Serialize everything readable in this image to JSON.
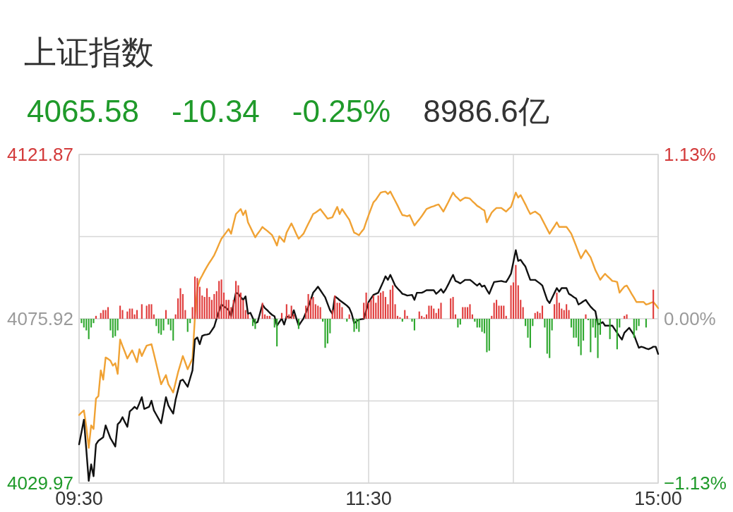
{
  "chart_data": {
    "type": "line",
    "title": "上证指数",
    "annotations": [
      "4065.58",
      "-10.34",
      "-0.25%",
      "8986.6亿"
    ],
    "categories": [
      "09:30",
      null,
      null,
      null,
      null,
      null,
      null,
      null,
      null,
      null,
      null,
      null,
      null,
      null,
      null,
      null,
      null,
      null,
      null,
      null,
      null,
      null,
      null,
      null,
      null,
      null,
      null,
      null,
      null,
      null,
      null,
      null,
      null,
      null,
      null,
      null,
      null,
      null,
      null,
      null,
      null,
      null,
      null,
      null,
      null,
      null,
      null,
      null,
      null,
      null,
      null,
      null,
      null,
      null,
      null,
      null,
      null,
      null,
      null,
      null,
      null,
      null,
      null,
      null,
      null,
      null,
      null,
      null,
      null,
      null,
      null,
      null,
      null,
      null,
      null,
      null,
      null,
      null,
      null,
      null,
      null,
      null,
      null,
      null,
      null,
      null,
      null,
      null,
      null,
      null,
      null,
      null,
      null,
      null,
      null,
      null,
      null,
      null,
      null,
      null,
      null,
      null,
      null,
      null,
      null,
      null,
      null,
      null,
      null,
      null,
      null,
      null,
      null,
      null,
      null,
      null,
      null,
      null,
      null,
      null,
      "11:30",
      null,
      null,
      null,
      null,
      null,
      null,
      null,
      null,
      null,
      null,
      null,
      null,
      null,
      null,
      null,
      null,
      null,
      null,
      null,
      null,
      null,
      null,
      null,
      null,
      null,
      null,
      null,
      null,
      null,
      null,
      null,
      null,
      null,
      null,
      null,
      null,
      null,
      null,
      null,
      null,
      null,
      null,
      null,
      null,
      null,
      null,
      null,
      null,
      null,
      null,
      null,
      null,
      null,
      null,
      null,
      null,
      null,
      null,
      null,
      null,
      null,
      null,
      null,
      null,
      null,
      null,
      null,
      null,
      null,
      null,
      null,
      null,
      null,
      null,
      null,
      null,
      null,
      null,
      null,
      null,
      null,
      null,
      null,
      null,
      null,
      null,
      null,
      null,
      null,
      null,
      null,
      null,
      null,
      null,
      null,
      null,
      null,
      null,
      null,
      null,
      null,
      null,
      null,
      null,
      null,
      null,
      null,
      null,
      null,
      null,
      null,
      null,
      null,
      null,
      null,
      null,
      null,
      null,
      null,
      "15:00"
    ],
    "ylim": [
      4029.97,
      4121.87
    ],
    "yticks": [
      4029.97,
      {
        "value": 4052.945,
        "label": null
      },
      4075.92,
      {
        "value": 4098.895,
        "label": null
      },
      4121.87
    ],
    "y2lim": [
      -1.13,
      1.13
    ],
    "y2ticks": [
      {
        "value": -1.13,
        "label": "−1.13%"
      },
      {
        "value": 0,
        "label": "0.00%"
      },
      {
        "value": 1.13,
        "label": "1.13%"
      }
    ],
    "grid": true,
    "series": [
      {
        "type": "bar",
        "axis": "y2",
        "color": "#e03c3c",
        "values": [
          null,
          null,
          null,
          null,
          null,
          null,
          null,
          0.02,
          null,
          0.04,
          0.06,
          0.06,
          0.08,
          null,
          null,
          null,
          null,
          0.09,
          0.06,
          null,
          0.05,
          0.07,
          0.07,
          0.03,
          0.06,
          null,
          0.1,
          null,
          0.09,
          0.1,
          0.1,
          0.03,
          null,
          null,
          null,
          null,
          0.06,
          null,
          null,
          null,
          0.03,
          0.14,
          0.21,
          0.17,
          0.06,
          null,
          null,
          0.08,
          0.29,
          0.28,
          0.22,
          0.16,
          0.15,
          0.21,
          0.15,
          0.13,
          0.17,
          0.19,
          0.26,
          0.27,
          0.18,
          0.13,
          0.13,
          0.08,
          0.13,
          0.26,
          0.23,
          0.18,
          0.13,
          0.06,
          0.03,
          null,
          null,
          null,
          null,
          null,
          0.11,
          0.03,
          0.02,
          0.02,
          null,
          null,
          null,
          null,
          0.04,
          null,
          0.1,
          0.03,
          0.09,
          0.03,
          null,
          null,
          null,
          null,
          0.09,
          0.17,
          0.14,
          0.15,
          0.1,
          0.09,
          0.08,
          null,
          null,
          null,
          null,
          0.06,
          0.16,
          0.11,
          0.11,
          0.08,
          null,
          null,
          0.03,
          null,
          null,
          null,
          null,
          null,
          0.11,
          0.18,
          0.11,
          0.13,
          0.16,
          0.11,
          0.16,
          0.18,
          0.19,
          0.15,
          0.1,
          0.2,
          0.23,
          0.1,
          0.02,
          0.01,
          null,
          0.06,
          0.02,
          null,
          null,
          null,
          null,
          0.05,
          0.02,
          0.01,
          0.03,
          0.09,
          0.09,
          0.07,
          0.04,
          0.07,
          0.11,
          null,
          null,
          null,
          0.14,
          0.15,
          0.03,
          null,
          null,
          0.08,
          0.08,
          0.08,
          0.1,
          0.03,
          null,
          null,
          null,
          null,
          null,
          null,
          null,
          0.02,
          0.11,
          0.13,
          0.09,
          0.09,
          0.09,
          0.02,
          null,
          0.23,
          0.25,
          0.37,
          0.23,
          0.13,
          0.08,
          null,
          null,
          null,
          null,
          0.04,
          0.05,
          0.04,
          0.09,
          null,
          null,
          null,
          null,
          0.1,
          0.18,
          0.11,
          0.07,
          0.06,
          0.1,
          0.06,
          null,
          null,
          null,
          null,
          null,
          null,
          0.03,
          null,
          null,
          null,
          null,
          null,
          null,
          null,
          null,
          null,
          null,
          null,
          null,
          null,
          null,
          null,
          0.02,
          0.03,
          null,
          null,
          null,
          null,
          null,
          null,
          null,
          null,
          null,
          null,
          0.2,
          null,
          null
        ]
      },
      {
        "type": "bar",
        "axis": "y2",
        "color": "#2ea82e",
        "values": [
          null,
          -0.03,
          -0.06,
          -0.08,
          -0.14,
          -0.06,
          -0.03,
          null,
          null,
          null,
          null,
          null,
          null,
          -0.08,
          -0.13,
          -0.12,
          -0.08,
          null,
          null,
          null,
          null,
          null,
          null,
          null,
          null,
          null,
          null,
          null,
          null,
          null,
          null,
          null,
          -0.05,
          -0.1,
          -0.11,
          -0.08,
          null,
          -0.04,
          -0.08,
          -0.15,
          null,
          null,
          null,
          null,
          null,
          -0.09,
          -0.03,
          null,
          null,
          null,
          null,
          null,
          null,
          null,
          null,
          null,
          null,
          null,
          null,
          null,
          null,
          null,
          null,
          null,
          null,
          null,
          null,
          null,
          null,
          null,
          null,
          null,
          -0.05,
          -0.07,
          null,
          null,
          null,
          null,
          null,
          null,
          null,
          -0.06,
          -0.19,
          null,
          null,
          null,
          null,
          null,
          null,
          null,
          null,
          -0.07,
          null,
          null,
          null,
          null,
          null,
          null,
          null,
          null,
          null,
          -0.02,
          -0.2,
          -0.17,
          -0.1,
          null,
          null,
          null,
          null,
          null,
          null,
          -0.02,
          null,
          null,
          -0.09,
          -0.07,
          -0.09,
          null,
          null,
          null,
          null,
          null,
          null,
          null,
          null,
          null,
          null,
          null,
          null,
          null,
          null,
          null,
          null,
          null,
          -0.02,
          null,
          null,
          null,
          -0.02,
          -0.08,
          null,
          null,
          null,
          null,
          null,
          null,
          null,
          null,
          null,
          null,
          null,
          null,
          null,
          null,
          null,
          null,
          null,
          -0.06,
          -0.04,
          null,
          null,
          null,
          null,
          null,
          -0.02,
          -0.06,
          -0.06,
          -0.09,
          -0.1,
          -0.23,
          -0.22,
          null,
          null,
          null,
          null,
          null,
          null,
          null,
          null,
          null,
          null,
          null,
          null,
          null,
          null,
          -0.05,
          -0.13,
          -0.2,
          -0.05,
          null,
          null,
          null,
          null,
          -0.06,
          -0.24,
          -0.27,
          -0.08,
          null,
          null,
          null,
          null,
          null,
          null,
          null,
          -0.06,
          -0.13,
          -0.13,
          -0.19,
          -0.25,
          -0.15,
          null,
          -0.01,
          -0.23,
          -0.06,
          -0.13,
          -0.27,
          -0.11,
          null,
          null,
          null,
          -0.14,
          null,
          null,
          -0.21,
          -0.06,
          null,
          null,
          null,
          null,
          null,
          -0.13,
          -0.08,
          -0.05,
          null,
          null,
          -0.06,
          null,
          null,
          null,
          null,
          null
        ]
      },
      {
        "color": "#f0a234",
        "values": [
          4049.0,
          4049.7,
          4050.3,
          4045.7,
          4039.8,
          4046.1,
          4045.1,
          4053.6,
          4054.3,
          4061.5,
          4058.9,
          4065.1,
          4064.7,
          4064.2,
          4062.8,
          4063.5,
          4060.5,
          4070.1,
          4068.3,
          4066.6,
          4064.8,
          4066.0,
          4067.1,
          4065.5,
          4063.8,
          4067.4,
          4065.5,
          4067.0,
          4068.4,
          4068.6,
          4068.8,
          4066.1,
          4063.3,
          4060.4,
          4057.6,
          4058.9,
          4060.2,
          4057.6,
          4056.5,
          4055.3,
          4058.1,
          4060.9,
          4063.2,
          4065.5,
          4063.7,
          4061.8,
          4063.3,
          4064.8,
          4076.3,
          4084.5,
          4086.8,
          4088.0,
          4089.3,
          4090.5,
          4091.6,
          4092.6,
          4093.7,
          4095.2,
          4096.8,
          4098.3,
          4099.2,
          4100.1,
          4101.0,
          4099.7,
          4102.5,
          4105.2,
          4105.9,
          4106.6,
          4104.9,
          4106.2,
          4102.9,
          4101.5,
          4100.1,
          4098.7,
          4099.7,
          4100.6,
          4101.6,
          4101.0,
          4100.5,
          4099.9,
          4099.3,
          4097.9,
          4096.4,
          4099.0,
          4098.2,
          4097.4,
          4100.0,
          4101.3,
          4102.6,
          4101.2,
          4099.7,
          4098.3,
          4099.0,
          4099.7,
          4101.1,
          4102.5,
          4103.8,
          4105.2,
          4105.6,
          4106.1,
          4106.6,
          4105.7,
          4104.8,
          4103.9,
          4104.1,
          4104.3,
          4105.8,
          4107.2,
          4105.2,
          4106.6,
          4105.6,
          4104.6,
          4103.6,
          4101.8,
          4100.0,
          4099.7,
          4099.3,
          4100.2,
          4101.0,
          4103.0,
          4104.9,
          4106.7,
          4108.5,
          4109.2,
          4110.2,
          4111.2,
          4111.4,
          4111.5,
          4110.8,
          4111.5,
          4110.2,
          4108.9,
          4107.6,
          4106.2,
          4104.9,
          4104.8,
          4104.6,
          4104.9,
          4103.5,
          4102.0,
          4102.9,
          4103.7,
          4104.6,
          4105.6,
          4106.6,
          4106.9,
          4107.2,
          4107.4,
          4107.7,
          4107.9,
          4106.9,
          4105.9,
          4107.2,
          4108.5,
          4109.9,
          4111.2,
          4110.2,
          4109.6,
          4108.9,
          4109.4,
          4109.8,
          4109.7,
          4109.5,
          4108.8,
          4108.2,
          4107.5,
          4107.1,
          4106.6,
          4106.2,
          4102.9,
          4104.3,
          4105.6,
          4106.3,
          4106.9,
          4106.9,
          4106.9,
          4106.4,
          4105.9,
          4106.6,
          4107.2,
          4109.2,
          4111.2,
          4109.8,
          4110.5,
          4109.2,
          4107.9,
          4106.5,
          4105.2,
          4105.6,
          4105.9,
          4105.4,
          4104.9,
          4103.6,
          4102.3,
          4101.0,
          4099.7,
          4100.8,
          4101.8,
          4102.9,
          4101.6,
          4101.6,
          4101.6,
          4101.6,
          4100.7,
          4099.7,
          4098.0,
          4096.3,
          4094.5,
          4092.8,
          4094.0,
          4095.1,
          4094.1,
          4093.1,
          4091.3,
          4089.5,
          4088.2,
          4086.8,
          4087.7,
          4088.5,
          4087.8,
          4087.2,
          4086.5,
          4086.4,
          4086.2,
          4083.2,
          4084.1,
          4084.9,
          4085.2,
          4084.1,
          4082.9,
          4081.8,
          4080.6,
          4080.6,
          4080.6,
          4080.6,
          4079.9,
          4080.1,
          4080.4,
          4080.6,
          4079.8,
          4078.9
        ]
      },
      {
        "color": "#111111",
        "values": [
          4040.8,
          4044.2,
          4047.7,
          4039.2,
          4030.6,
          4035.2,
          4031.9,
          4040.8,
          4041.8,
          4042.3,
          4042.8,
          4046.1,
          4044.3,
          4042.5,
          4041.4,
          4040.2,
          4046.4,
          4047.1,
          4048.4,
          4047.0,
          4045.7,
          4050.0,
          4050.6,
          4051.3,
          4050.7,
          4052.3,
          4054.0,
          4050.7,
          4051.0,
          4051.3,
          4053.0,
          4050.3,
          4049.1,
          4047.9,
          4046.7,
          4050.3,
          4054.0,
          4051.7,
          4050.5,
          4049.4,
          4053.3,
          4056.0,
          4058.6,
          4058.9,
          4057.9,
          4056.9,
          4059.2,
          4061.5,
          4070.1,
          4070.7,
          4068.8,
          4071.1,
          4071.4,
          4071.5,
          4071.7,
          4072.7,
          4073.7,
          4076.0,
          4078.0,
          4079.9,
          4079.4,
          4078.9,
          4078.3,
          4076.6,
          4079.9,
          4083.2,
          4082.9,
          4082.0,
          4081.2,
          4082.2,
          4077.3,
          4077.6,
          4076.1,
          4074.7,
          4075.0,
          4077.5,
          4079.9,
          4078.9,
          4078.3,
          4077.6,
          4077.0,
          4076.6,
          4074.0,
          4075.0,
          4076.0,
          4074.3,
          4076.6,
          4076.4,
          4076.3,
          4078.3,
          4076.1,
          4074.0,
          4075.0,
          4076.0,
          4077.6,
          4079.3,
          4081.2,
          4083.2,
          4084.0,
          4084.9,
          4083.9,
          4082.9,
          4081.9,
          4080.1,
          4078.3,
          4077.3,
          4082.2,
          4081.7,
          4081.1,
          4080.6,
          4080.1,
          4079.6,
          4078.9,
          4077.3,
          4074.7,
          4075.2,
          4075.7,
          4075.8,
          4075.9,
          4078.2,
          4080.6,
          4081.6,
          4082.6,
          4082.9,
          4083.2,
          4084.7,
          4086.2,
          4087.8,
          4086.8,
          4088.2,
          4086.7,
          4085.2,
          4084.4,
          4083.7,
          4082.9,
          4082.7,
          4082.4,
          4082.5,
          4082.6,
          4081.2,
          4083.2,
          4083.2,
          4083.2,
          4083.5,
          4083.9,
          4083.9,
          4083.9,
          4083.9,
          4082.9,
          4083.5,
          4084.2,
          4083.2,
          4084.2,
          4085.5,
          4086.9,
          4088.2,
          4086.5,
          4086.2,
          4085.8,
          4086.3,
          4086.8,
          4086.8,
          4086.8,
          4086.3,
          4085.7,
          4085.2,
          4085.8,
          4084.9,
          4085.2,
          4084.0,
          4082.9,
          4084.6,
          4086.2,
          4086.3,
          4086.4,
          4086.5,
          4086.3,
          4086.2,
          4087.3,
          4088.5,
          4091.8,
          4095.1,
          4092.1,
          4092.4,
          4091.4,
          4090.5,
          4088.6,
          4086.8,
          4086.8,
          4086.8,
          4086.3,
          4085.8,
          4085.2,
          4083.2,
          4081.2,
          4080.3,
          4081.7,
          4083.1,
          4084.5,
          4083.5,
          4084.5,
          4084.5,
          4084.5,
          4082.9,
          4082.5,
          4082.0,
          4081.6,
          4079.9,
          4080.3,
          4080.8,
          4081.2,
          4080.2,
          4079.3,
          4078.6,
          4078.0,
          4074.3,
          4074.6,
          4075.0,
          4074.0,
          4074.0,
          4074.0,
          4074.0,
          4073.0,
          4072.0,
          4071.0,
          4070.1,
          4072.0,
          4072.7,
          4073.4,
          4072.4,
          4071.4,
          4069.6,
          4067.8,
          4068.1,
          4067.9,
          4067.6,
          4067.4,
          4067.7,
          4068.1,
          4068.1,
          4066.1
        ]
      }
    ]
  }
}
